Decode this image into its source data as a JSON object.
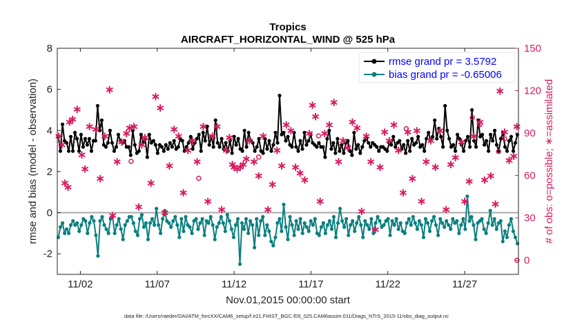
{
  "chart_data": {
    "type": "line",
    "title": "Tropics",
    "subtitle": "AIRCRAFT_HORIZONTAL_WIND @ 525 hPa",
    "xlabel": "Nov.01,2015 00:00:00 start",
    "ylabel_left": "rmse and bias (model - observation)",
    "ylabel_right": "# of obs: o=possible; ∗=assimilated",
    "footer": "data file: /Users/raeder/DAI/ATM_forcXX/CAM6_setup/f.e21.FHIST_BGC.f09_025.CAM6assim.011/Diags_NTrS_2015-11/obs_diag_output.nc",
    "xlim": [
      0.5,
      30.5
    ],
    "ylim_left": [
      -3,
      8
    ],
    "ylim_right": [
      -10,
      150
    ],
    "x_ticks": [
      2,
      7,
      12,
      17,
      22,
      27
    ],
    "x_tick_labels": [
      "11/02",
      "11/07",
      "11/12",
      "11/17",
      "11/22",
      "11/27"
    ],
    "y_left_ticks": [
      "-2",
      "0",
      "2",
      "4",
      "6",
      "8"
    ],
    "y_right_ticks": [
      "0",
      "30",
      "60",
      "90",
      "120",
      "150"
    ],
    "colors": {
      "rmse": "#000000",
      "bias": "#0a7f7f",
      "obs": "#d81b60",
      "zero_line": "#aaaaaa",
      "legend_text": "#0000ff"
    },
    "series": [
      {
        "name": "rmse grand pr = 3.5792",
        "axis": "left",
        "values": [
          3.7,
          3.0,
          4.3,
          3.5,
          3.4,
          3.0,
          3.7,
          3.0,
          3.9,
          3.6,
          3.0,
          3.8,
          3.2,
          3.6,
          3.3,
          3.6,
          3.0,
          3.5,
          3.5,
          5.2,
          4.0,
          4.5,
          3.3,
          3.2,
          3.4,
          4.0,
          3.4,
          3.0,
          3.2,
          3.8,
          3.5,
          3.4,
          3.5,
          3.2,
          3.2,
          2.8,
          4.0,
          3.3,
          2.9,
          3.0,
          3.8,
          3.4,
          3.6,
          2.7,
          3.8,
          3.4,
          3.5,
          3.3,
          2.9,
          3.3,
          3.2,
          3.0,
          3.3,
          3.1,
          3.4,
          3.2,
          3.5,
          3.1,
          3.2,
          3.6,
          3.5,
          3.0,
          3.2,
          3.4,
          3.7,
          3.1,
          3.4,
          3.6,
          3.8,
          3.0,
          3.9,
          3.5,
          4.2,
          3.3,
          3.7,
          3.2,
          4.5,
          3.4,
          3.2,
          3.6,
          3.1,
          3.4,
          3.0,
          3.5,
          2.9,
          3.7,
          3.3,
          3.6,
          3.1,
          3.0,
          4.0,
          3.2,
          3.9,
          3.5,
          3.4,
          3.0,
          3.2,
          3.6,
          3.0,
          2.9,
          3.6,
          3.1,
          3.5,
          3.0,
          3.3,
          3.9,
          3.4,
          5.7,
          3.8,
          3.9,
          3.5,
          3.7,
          3.3,
          3.2,
          3.9,
          3.2,
          3.0,
          3.5,
          3.1,
          3.9,
          3.3,
          3.5,
          3.8,
          3.4,
          3.3,
          3.2,
          3.4,
          3.2,
          3.2,
          2.7,
          3.6,
          4.0,
          3.1,
          3.4,
          2.9,
          3.6,
          3.0,
          3.3,
          2.9,
          3.4,
          3.5,
          3.0,
          2.8,
          3.9,
          3.1,
          3.3,
          2.9,
          3.2,
          3.5,
          3.6,
          3.4,
          3.2,
          3.4,
          3.3,
          3.2,
          3.0,
          3.2,
          3.2,
          3.1,
          3.0,
          3.4,
          3.3,
          3.7,
          3.2,
          3.4,
          3.5,
          3.1,
          3.3,
          2.9,
          3.5,
          3.0,
          3.6,
          3.3,
          3.4,
          3.7,
          3.2,
          3.3,
          3.0,
          3.6,
          3.9,
          3.5,
          3.7,
          4.5,
          3.6,
          4.1,
          3.7,
          3.2,
          5.2,
          4.0,
          3.6,
          3.2,
          3.3,
          3.0,
          3.8,
          3.6,
          3.3,
          3.0,
          3.5,
          3.7,
          3.2,
          5.0,
          3.5,
          3.2,
          4.5,
          3.7,
          3.8,
          3.3,
          3.5,
          3.0,
          3.8,
          3.5,
          4.0,
          3.3,
          3.0,
          3.6,
          3.9,
          3.2,
          3.0,
          3.5,
          3.7,
          3.0,
          3.4,
          3.8
        ]
      },
      {
        "name": "bias grand pr = -0.65006",
        "axis": "left",
        "values": [
          -1.2,
          -0.7,
          -0.5,
          -1.0,
          -0.8,
          -1.0,
          -0.6,
          -0.4,
          -0.6,
          -0.5,
          -0.9,
          -0.6,
          -0.3,
          -0.4,
          -1.0,
          -0.5,
          -0.2,
          -0.4,
          -1.1,
          -2.1,
          -0.4,
          -0.2,
          -0.6,
          -0.8,
          -1.0,
          -0.3,
          -0.2,
          -1.0,
          -0.6,
          -0.3,
          -0.8,
          -1.3,
          -0.6,
          -0.4,
          -0.2,
          -0.2,
          -0.5,
          -0.9,
          -1.1,
          -0.3,
          -0.1,
          -0.7,
          -0.5,
          -1.3,
          -0.5,
          -0.3,
          -0.6,
          0.2,
          -0.6,
          -1.0,
          -0.3,
          0.1,
          -0.4,
          -0.5,
          -0.7,
          -0.4,
          -0.2,
          -0.6,
          -1.2,
          -0.3,
          -0.9,
          -0.2,
          -0.6,
          -0.7,
          -1.0,
          -0.4,
          -0.3,
          -0.8,
          -0.5,
          -0.3,
          -1.1,
          -0.4,
          -0.5,
          -0.2,
          -0.6,
          -1.3,
          -0.7,
          -0.5,
          -0.2,
          -0.5,
          -0.9,
          -0.1,
          -0.4,
          -0.8,
          -1.2,
          -0.6,
          -0.3,
          -2.5,
          -0.5,
          -0.8,
          -0.3,
          -1.0,
          -0.4,
          -0.6,
          -1.7,
          -0.3,
          -1.1,
          -0.4,
          -0.2,
          -1.1,
          -0.6,
          -0.9,
          -1.4,
          -1.6,
          -1.2,
          -0.5,
          -0.3,
          -0.9,
          0.4,
          -0.7,
          -1.3,
          -0.2,
          -0.6,
          -1.1,
          -0.4,
          -0.8,
          -0.3,
          -1.0,
          -0.5,
          -0.7,
          -0.9,
          -0.4,
          -0.6,
          -0.3,
          -1.0,
          -1.1,
          -0.7,
          -0.5,
          -1.0,
          -0.6,
          -0.4,
          -0.8,
          -0.2,
          -1.2,
          -0.5,
          0.2,
          -0.4,
          -0.7,
          -0.3,
          -1.1,
          -0.6,
          -0.4,
          -0.9,
          -0.5,
          -0.2,
          -0.6,
          -1.2,
          -0.4,
          -0.6,
          -0.8,
          -0.3,
          -1.0,
          -0.5,
          -0.2,
          -0.4,
          -0.7,
          -0.6,
          -0.4,
          -0.3,
          -1.1,
          -0.4,
          -0.6,
          -0.3,
          -0.8,
          -0.5,
          -0.9,
          -1.0,
          -0.5,
          -0.3,
          -0.6,
          -0.2,
          -0.5,
          -0.8,
          -0.4,
          -0.6,
          -1.2,
          -0.3,
          -0.5,
          -0.9,
          -0.4,
          -0.2,
          -0.6,
          -1.1,
          -0.3,
          -0.5,
          -0.7,
          -0.4,
          -0.6,
          -0.8,
          -0.3,
          -0.5,
          -0.4,
          -1.0,
          -0.6,
          -0.3,
          -0.8,
          0.8,
          -0.4,
          -0.2,
          -0.6,
          -1.3,
          -0.5,
          -0.4,
          -0.3,
          -0.8,
          -1.0,
          -0.5,
          0.1,
          -0.6,
          -0.3,
          -0.8,
          -0.5,
          -0.4,
          -1.4,
          -0.9,
          -1.2,
          -0.6,
          -0.3,
          -0.9,
          -1.2,
          -1.5
        ]
      },
      {
        "name": "possible",
        "axis": "right",
        "marker": "o",
        "points": [
          [
            5.3,
            70
          ],
          [
            9.7,
            58
          ],
          [
            13.6,
            73
          ],
          [
            17.5,
            88
          ],
          [
            23.2,
            93
          ],
          [
            27.5,
            101
          ],
          [
            28.0,
            96
          ],
          [
            29.2,
            77
          ],
          [
            29.6,
            86
          ],
          [
            30.4,
            0
          ]
        ]
      },
      {
        "name": "assimilated",
        "axis": "right",
        "marker": "*",
        "points": [
          [
            0.6,
            88
          ],
          [
            0.8,
            82
          ],
          [
            1.0,
            55
          ],
          [
            1.2,
            52
          ],
          [
            1.3,
            98
          ],
          [
            1.5,
            100
          ],
          [
            1.8,
            107
          ],
          [
            2.1,
            75
          ],
          [
            2.3,
            65
          ],
          [
            2.6,
            95
          ],
          [
            3.0,
            93
          ],
          [
            3.3,
            58
          ],
          [
            3.6,
            88
          ],
          [
            3.9,
            121
          ],
          [
            4.1,
            32
          ],
          [
            4.4,
            70
          ],
          [
            4.7,
            84
          ],
          [
            5.0,
            90
          ],
          [
            5.2,
            94
          ],
          [
            5.5,
            95
          ],
          [
            5.8,
            38
          ],
          [
            6.0,
            82
          ],
          [
            6.2,
            87
          ],
          [
            6.6,
            55
          ],
          [
            6.9,
            116
          ],
          [
            7.2,
            108
          ],
          [
            7.5,
            34
          ],
          [
            7.8,
            67
          ],
          [
            8.1,
            93
          ],
          [
            8.4,
            88
          ],
          [
            8.7,
            48
          ],
          [
            9.0,
            78
          ],
          [
            9.3,
            85
          ],
          [
            9.6,
            70
          ],
          [
            10.0,
            95
          ],
          [
            10.3,
            42
          ],
          [
            10.6,
            88
          ],
          [
            10.9,
            95
          ],
          [
            11.2,
            36
          ],
          [
            11.5,
            78
          ],
          [
            11.7,
            87
          ],
          [
            11.9,
            68
          ],
          [
            12.0,
            66
          ],
          [
            12.2,
            65
          ],
          [
            12.4,
            66
          ],
          [
            12.6,
            68
          ],
          [
            12.8,
            72
          ],
          [
            13.0,
            85
          ],
          [
            13.3,
            70
          ],
          [
            13.6,
            60
          ],
          [
            13.9,
            88
          ],
          [
            14.2,
            36
          ],
          [
            14.5,
            54
          ],
          [
            14.8,
            78
          ],
          [
            15.1,
            67
          ],
          [
            15.4,
            96
          ],
          [
            15.7,
            92
          ],
          [
            16.0,
            66
          ],
          [
            16.3,
            62
          ],
          [
            16.6,
            57
          ],
          [
            16.9,
            90
          ],
          [
            17.1,
            110
          ],
          [
            17.3,
            102
          ],
          [
            17.6,
            42
          ],
          [
            17.9,
            90
          ],
          [
            18.2,
            96
          ],
          [
            18.5,
            112
          ],
          [
            18.8,
            70
          ],
          [
            19.1,
            85
          ],
          [
            19.4,
            80
          ],
          [
            19.7,
            98
          ],
          [
            20.0,
            94
          ],
          [
            20.3,
            35
          ],
          [
            20.6,
            88
          ],
          [
            20.9,
            70
          ],
          [
            21.2,
            22
          ],
          [
            21.5,
            66
          ],
          [
            21.8,
            91
          ],
          [
            22.1,
            85
          ],
          [
            22.4,
            96
          ],
          [
            22.7,
            78
          ],
          [
            23.0,
            48
          ],
          [
            23.3,
            91
          ],
          [
            23.6,
            58
          ],
          [
            23.9,
            92
          ],
          [
            24.2,
            42
          ],
          [
            24.5,
            70
          ],
          [
            24.8,
            85
          ],
          [
            25.1,
            66
          ],
          [
            25.4,
            92
          ],
          [
            25.8,
            36
          ],
          [
            26.1,
            68
          ],
          [
            26.4,
            73
          ],
          [
            26.8,
            84
          ],
          [
            27.0,
            42
          ],
          [
            27.3,
            56
          ],
          [
            27.6,
            88
          ],
          [
            28.0,
            98
          ],
          [
            28.3,
            57
          ],
          [
            28.7,
            60
          ],
          [
            29.0,
            40
          ],
          [
            29.3,
            120
          ],
          [
            29.6,
            91
          ],
          [
            29.9,
            71
          ],
          [
            30.2,
            74
          ],
          [
            30.4,
            95
          ]
        ]
      }
    ]
  }
}
